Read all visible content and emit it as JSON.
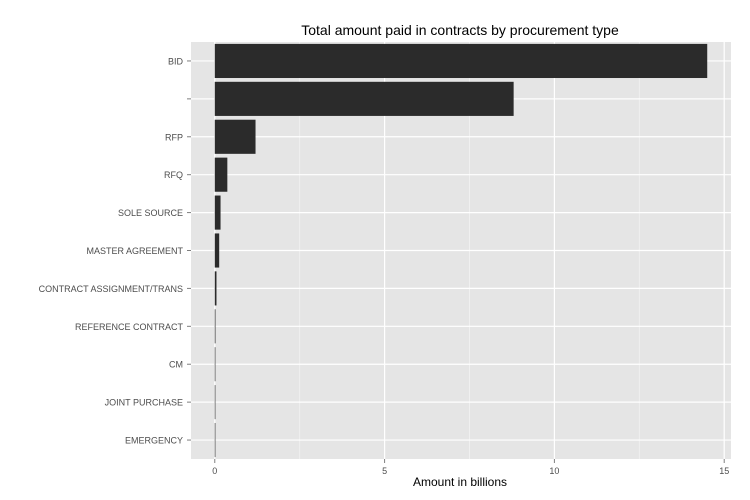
{
  "chart_data": {
    "type": "bar",
    "orientation": "horizontal",
    "title": "Total amount paid in contracts by procurement type",
    "xlabel": "Amount in billions",
    "ylabel": "",
    "xlim": [
      -0.7,
      15.2
    ],
    "xticks": [
      0,
      5,
      10,
      15
    ],
    "xtick_labels": [
      "0",
      "5",
      "10",
      "15"
    ],
    "grid": true,
    "categories": [
      "BID",
      "",
      "RFP",
      "RFQ",
      "SOLE SOURCE",
      "MASTER AGREEMENT",
      "CONTRACT ASSIGNMENT/TRANS",
      "REFERENCE CONTRACT",
      "CM",
      "JOINT PURCHASE",
      "EMERGENCY"
    ],
    "values": [
      14.5,
      8.8,
      1.2,
      0.37,
      0.17,
      0.13,
      0.05,
      0.02,
      0.005,
      0.002,
      0.001
    ]
  },
  "colors": {
    "panel": "#e5e5e5",
    "grid_major": "#ffffff",
    "grid_minor": "#f2f2f2",
    "bar": "#2b2b2b",
    "tick_text": "#4d4d4d",
    "tick_mark": "#7f7f7f"
  }
}
